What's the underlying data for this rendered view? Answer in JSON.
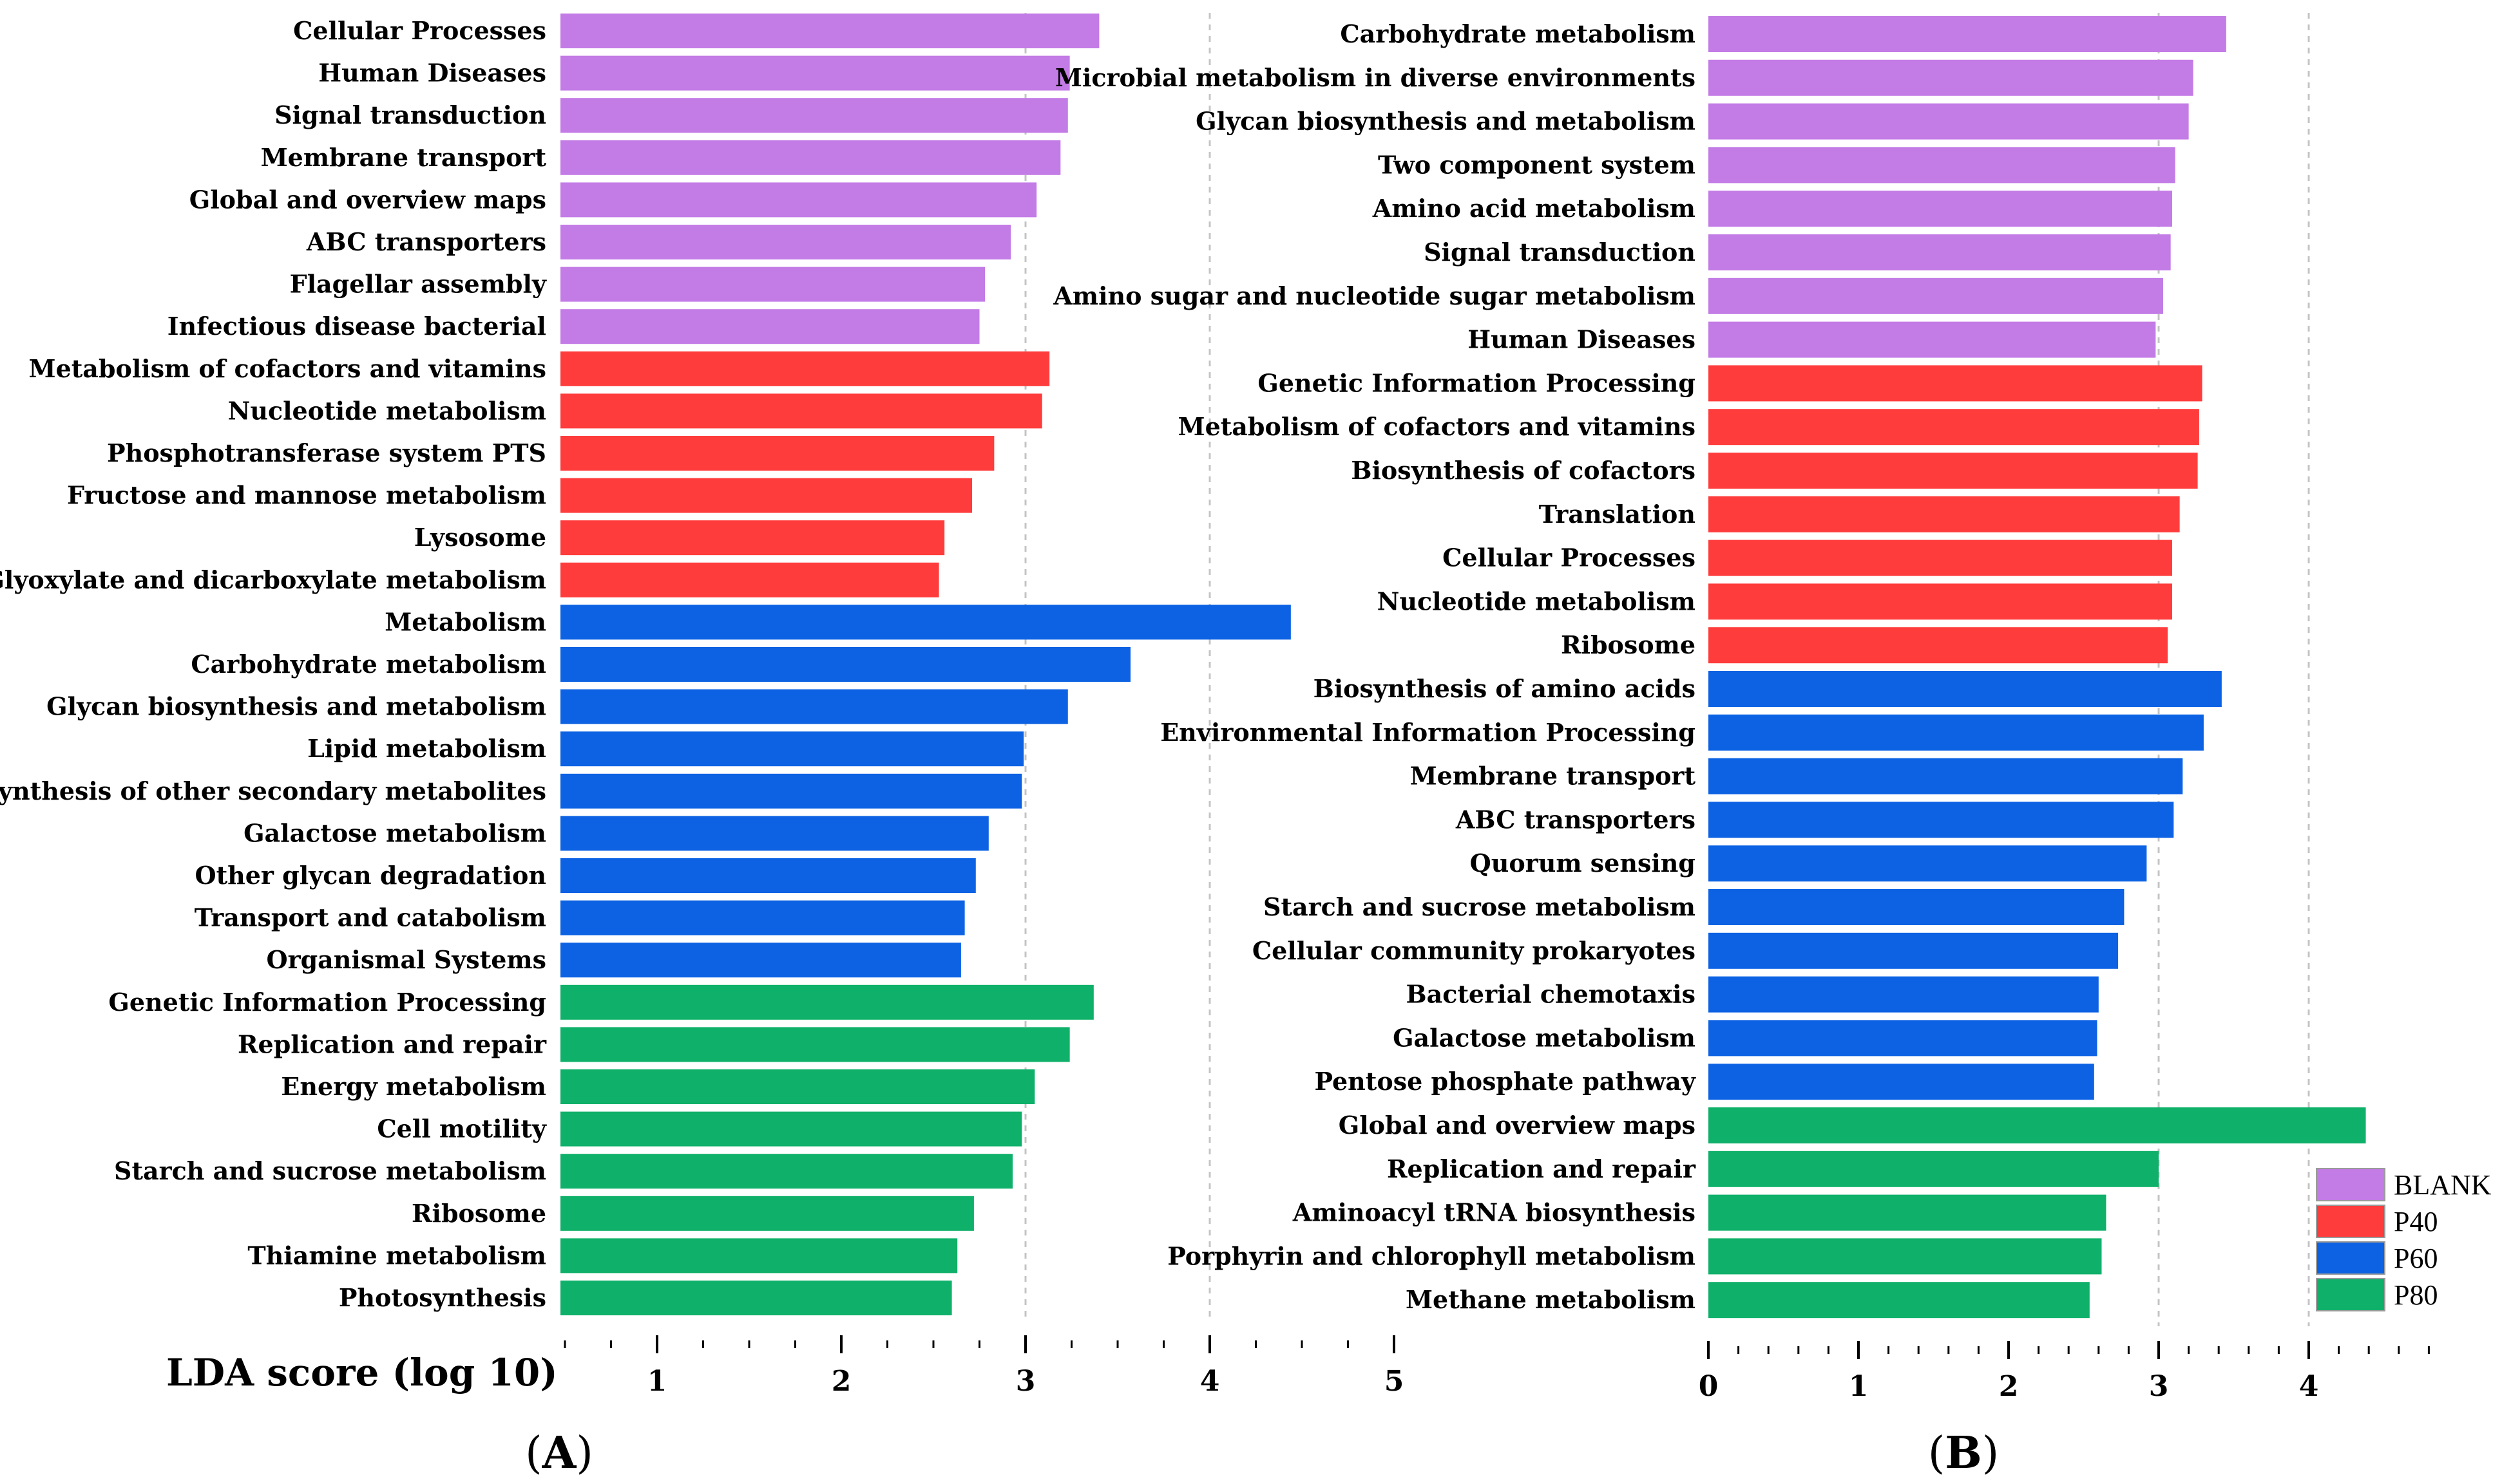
{
  "colors": {
    "BLANK": "#c37be6",
    "P40": "#ff3c3c",
    "P60": "#0c62e3",
    "P80": "#0fb069"
  },
  "legend": [
    {
      "group": "BLANK",
      "label": "BLANK"
    },
    {
      "group": "P40",
      "label": "P40"
    },
    {
      "group": "P60",
      "label": "P60"
    },
    {
      "group": "P80",
      "label": "P80"
    }
  ],
  "chart_data": [
    {
      "type": "bar",
      "orientation": "horizontal",
      "panel_label": "A",
      "xlabel": "LDA score (log 10)",
      "xlim": [
        0.5,
        5
      ],
      "xticks": [
        1,
        2,
        3,
        4,
        5
      ],
      "gridlines": [
        3,
        4
      ],
      "bars": [
        {
          "category": "Cellular Processes",
          "value": 3.4,
          "group": "BLANK"
        },
        {
          "category": "Human Diseases",
          "value": 3.24,
          "group": "BLANK"
        },
        {
          "category": "Signal transduction",
          "value": 3.23,
          "group": "BLANK"
        },
        {
          "category": "Membrane transport",
          "value": 3.19,
          "group": "BLANK"
        },
        {
          "category": "Global and overview maps",
          "value": 3.06,
          "group": "BLANK"
        },
        {
          "category": "ABC transporters",
          "value": 2.92,
          "group": "BLANK"
        },
        {
          "category": "Flagellar assembly",
          "value": 2.78,
          "group": "BLANK"
        },
        {
          "category": "Infectious disease  bacterial",
          "value": 2.75,
          "group": "BLANK"
        },
        {
          "category": "Metabolism of cofactors and vitamins",
          "value": 3.13,
          "group": "P40"
        },
        {
          "category": "Nucleotide metabolism",
          "value": 3.09,
          "group": "P40"
        },
        {
          "category": "Phosphotransferase system  PTS",
          "value": 2.83,
          "group": "P40"
        },
        {
          "category": "Fructose and mannose metabolism",
          "value": 2.71,
          "group": "P40"
        },
        {
          "category": "Lysosome",
          "value": 2.56,
          "group": "P40"
        },
        {
          "category": "Glyoxylate and dicarboxylate metabolism",
          "value": 2.53,
          "group": "P40"
        },
        {
          "category": "Metabolism",
          "value": 4.44,
          "group": "P60"
        },
        {
          "category": "Carbohydrate metabolism",
          "value": 3.57,
          "group": "P60"
        },
        {
          "category": "Glycan biosynthesis and metabolism",
          "value": 3.23,
          "group": "P60"
        },
        {
          "category": "Lipid metabolism",
          "value": 2.99,
          "group": "P60"
        },
        {
          "category": "Biosynthesis of other secondary metabolites",
          "value": 2.98,
          "group": "P60"
        },
        {
          "category": "Galactose metabolism",
          "value": 2.8,
          "group": "P60"
        },
        {
          "category": "Other glycan degradation",
          "value": 2.73,
          "group": "P60"
        },
        {
          "category": "Transport and catabolism",
          "value": 2.67,
          "group": "P60"
        },
        {
          "category": "Organismal Systems",
          "value": 2.65,
          "group": "P60"
        },
        {
          "category": "Genetic Information Processing",
          "value": 3.37,
          "group": "P80"
        },
        {
          "category": "Replication and repair",
          "value": 3.24,
          "group": "P80"
        },
        {
          "category": "Energy metabolism",
          "value": 3.05,
          "group": "P80"
        },
        {
          "category": "Cell motility",
          "value": 2.98,
          "group": "P80"
        },
        {
          "category": "Starch and sucrose metabolism",
          "value": 2.93,
          "group": "P80"
        },
        {
          "category": "Ribosome",
          "value": 2.72,
          "group": "P80"
        },
        {
          "category": "Thiamine metabolism",
          "value": 2.63,
          "group": "P80"
        },
        {
          "category": "Photosynthesis",
          "value": 2.6,
          "group": "P80"
        }
      ]
    },
    {
      "type": "bar",
      "orientation": "horizontal",
      "panel_label": "B",
      "xlabel": "",
      "xlim": [
        0,
        4.8
      ],
      "xticks": [
        0,
        1,
        2,
        3,
        4
      ],
      "gridlines": [
        3,
        4
      ],
      "bars": [
        {
          "category": "Carbohydrate metabolism",
          "value": 3.45,
          "group": "BLANK"
        },
        {
          "category": "Microbial metabolism in diverse environments",
          "value": 3.23,
          "group": "BLANK"
        },
        {
          "category": "Glycan biosynthesis and metabolism",
          "value": 3.2,
          "group": "BLANK"
        },
        {
          "category": "Two component system",
          "value": 3.11,
          "group": "BLANK"
        },
        {
          "category": "Amino acid metabolism",
          "value": 3.09,
          "group": "BLANK"
        },
        {
          "category": "Signal transduction",
          "value": 3.08,
          "group": "BLANK"
        },
        {
          "category": "Amino sugar and nucleotide sugar metabolism",
          "value": 3.03,
          "group": "BLANK"
        },
        {
          "category": "Human Diseases",
          "value": 2.98,
          "group": "BLANK"
        },
        {
          "category": "Genetic Information Processing",
          "value": 3.29,
          "group": "P40"
        },
        {
          "category": "Metabolism of cofactors and vitamins",
          "value": 3.27,
          "group": "P40"
        },
        {
          "category": "Biosynthesis of cofactors",
          "value": 3.26,
          "group": "P40"
        },
        {
          "category": "Translation",
          "value": 3.14,
          "group": "P40"
        },
        {
          "category": "Cellular Processes",
          "value": 3.09,
          "group": "P40"
        },
        {
          "category": "Nucleotide metabolism",
          "value": 3.09,
          "group": "P40"
        },
        {
          "category": "Ribosome",
          "value": 3.06,
          "group": "P40"
        },
        {
          "category": "Biosynthesis of amino acids",
          "value": 3.42,
          "group": "P60"
        },
        {
          "category": "Environmental Information Processing",
          "value": 3.3,
          "group": "P60"
        },
        {
          "category": "Membrane transport",
          "value": 3.16,
          "group": "P60"
        },
        {
          "category": "ABC transporters",
          "value": 3.1,
          "group": "P60"
        },
        {
          "category": "Quorum sensing",
          "value": 2.92,
          "group": "P60"
        },
        {
          "category": "Starch and sucrose metabolism",
          "value": 2.77,
          "group": "P60"
        },
        {
          "category": "Cellular community   prokaryotes",
          "value": 2.73,
          "group": "P60"
        },
        {
          "category": "Bacterial chemotaxis",
          "value": 2.6,
          "group": "P60"
        },
        {
          "category": "Galactose metabolism",
          "value": 2.59,
          "group": "P60"
        },
        {
          "category": "Pentose phosphate pathway",
          "value": 2.57,
          "group": "P60"
        },
        {
          "category": "Global and overview maps",
          "value": 4.38,
          "group": "P80"
        },
        {
          "category": "Replication and repair",
          "value": 3.0,
          "group": "P80"
        },
        {
          "category": "Aminoacyl tRNA biosynthesis",
          "value": 2.65,
          "group": "P80"
        },
        {
          "category": "Porphyrin and chlorophyll metabolism",
          "value": 2.62,
          "group": "P80"
        },
        {
          "category": "Methane metabolism",
          "value": 2.54,
          "group": "P80"
        }
      ]
    }
  ]
}
